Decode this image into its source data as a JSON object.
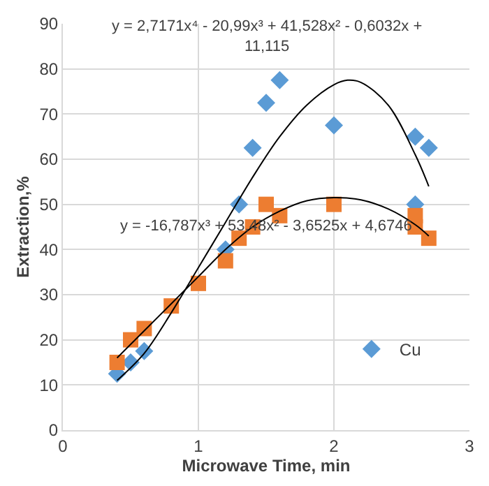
{
  "chart_data": {
    "type": "scatter",
    "xlabel": "Microwave Time, min",
    "ylabel": "Extraction,%",
    "xlim": [
      0,
      3
    ],
    "xticks": [
      0,
      1,
      2,
      3
    ],
    "ylim": [
      0,
      90
    ],
    "yticks": [
      0,
      10,
      20,
      30,
      40,
      50,
      60,
      70,
      80,
      90
    ],
    "grid": true,
    "legend": "bottom right",
    "annotations": [
      "y = 2,7171x⁴ - 20,99x³ + 41,528x² - 0,6032x + 11,115",
      "y = -16,787x³ + 53,48x² - 3,6525x + 4,6746"
    ],
    "series": [
      {
        "name": "Cu",
        "marker": "diamond",
        "color": "#5b9bd5",
        "x": [
          0.4,
          0.5,
          0.6,
          1.2,
          1.3,
          1.4,
          1.5,
          1.6,
          2.0,
          2.6,
          2.6,
          2.7
        ],
        "values": [
          12.5,
          15,
          17.5,
          40,
          50,
          62.5,
          72.5,
          77.5,
          67.5,
          65,
          50,
          62.5
        ]
      },
      {
        "marker": "square",
        "color": "#ed7d31",
        "x": [
          0.4,
          0.5,
          0.6,
          0.8,
          1.0,
          1.2,
          1.3,
          1.4,
          1.5,
          1.6,
          2.0,
          2.6,
          2.6,
          2.7
        ],
        "values": [
          15,
          20,
          22.5,
          27.5,
          32.5,
          37.5,
          42.5,
          45,
          50,
          47.5,
          50,
          47.5,
          45,
          42.5
        ]
      },
      {
        "type": "line",
        "color": "#000000",
        "x": [
          0.4,
          0.6,
          0.8,
          1.0,
          1.2,
          1.4,
          1.6,
          1.8,
          2.0,
          2.1,
          2.2,
          2.4,
          2.6,
          2.7
        ],
        "values": [
          11,
          17,
          26,
          36,
          46,
          56,
          65,
          72,
          76.5,
          77.5,
          77,
          72,
          61,
          54
        ]
      },
      {
        "type": "line",
        "color": "#000000",
        "x": [
          0.4,
          0.6,
          0.8,
          1.0,
          1.2,
          1.4,
          1.6,
          1.8,
          2.0,
          2.2,
          2.4,
          2.6,
          2.7
        ],
        "values": [
          16,
          22,
          28,
          34,
          40,
          45,
          48.5,
          50.8,
          51.5,
          51,
          49,
          45.5,
          43
        ]
      }
    ]
  }
}
